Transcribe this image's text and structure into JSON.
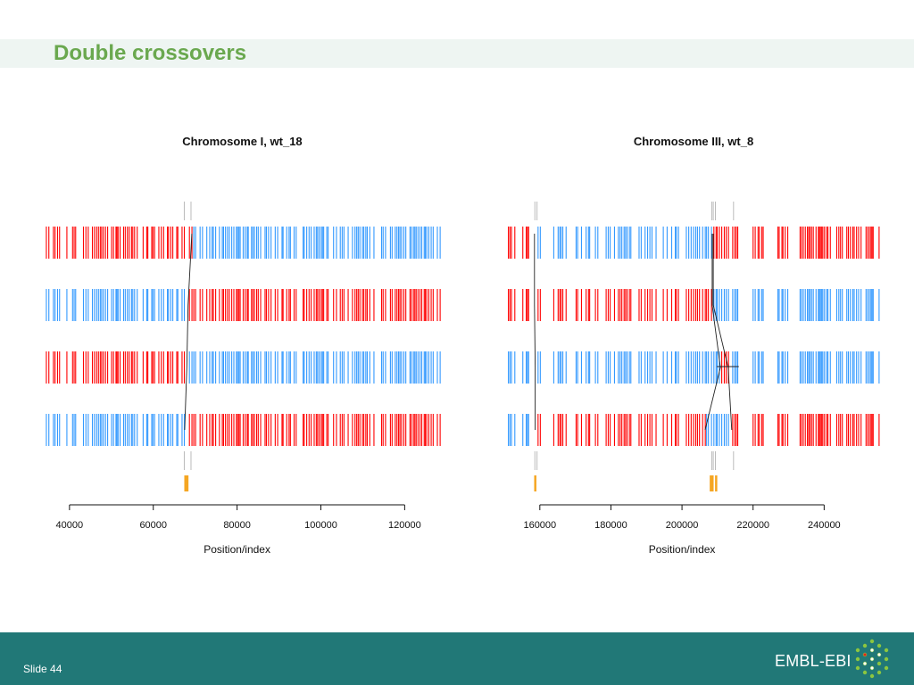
{
  "slide": {
    "title": "Double crossovers",
    "footer_label": "Slide 44",
    "logo_text": "EMBL-EBI"
  },
  "colors": {
    "red": "#ff0000",
    "blue": "#3399ff",
    "orange": "#f5a623",
    "line": "#222222",
    "title_green": "#6aa84f",
    "footer_teal": "#217877"
  },
  "chart_data": [
    {
      "type": "genotype-tracks",
      "title": "Chromosome I, wt_18",
      "xlabel": "Position/index",
      "xlim": [
        33000,
        131000
      ],
      "xticks": [
        40000,
        60000,
        80000,
        100000,
        120000
      ],
      "tick_labels": [
        "40000",
        "60000",
        "80000",
        "100000",
        "120000"
      ],
      "track_range": [
        34000,
        128500
      ],
      "tracks": [
        {
          "segments": [
            {
              "from": 34000,
              "to": 69200,
              "color": "red"
            },
            {
              "from": 69200,
              "to": 128500,
              "color": "blue"
            }
          ]
        },
        {
          "segments": [
            {
              "from": 34000,
              "to": 68300,
              "color": "blue"
            },
            {
              "from": 68300,
              "to": 128500,
              "color": "red"
            }
          ]
        },
        {
          "segments": [
            {
              "from": 34000,
              "to": 68000,
              "color": "red"
            },
            {
              "from": 68000,
              "to": 128500,
              "color": "blue"
            }
          ]
        },
        {
          "segments": [
            {
              "from": 34000,
              "to": 67500,
              "color": "blue"
            },
            {
              "from": 67500,
              "to": 128500,
              "color": "red"
            }
          ]
        }
      ],
      "gaps": [
        [
          35200,
          35700
        ],
        [
          39500,
          40200
        ],
        [
          41800,
          42400
        ],
        [
          44500,
          45000
        ],
        [
          56500,
          57400
        ],
        [
          74800,
          75400
        ],
        [
          79200,
          79700
        ],
        [
          85800,
          86500
        ],
        [
          89000,
          89300
        ],
        [
          94500,
          95200
        ],
        [
          100600,
          101200
        ],
        [
          105600,
          106200
        ],
        [
          111800,
          112400
        ],
        [
          116000,
          116400
        ],
        [
          120200,
          120700
        ]
      ],
      "connectors": [
        [
          69200,
          68300,
          68000,
          67500
        ]
      ],
      "top_marks": [
        67400,
        69000
      ],
      "highlights": [
        [
          67400,
          68400
        ]
      ]
    },
    {
      "type": "genotype-tracks",
      "title": "Chromosome III, wt_8",
      "xlabel": "Position/index",
      "xlim": [
        150000,
        258000
      ],
      "xticks": [
        160000,
        180000,
        200000,
        220000,
        240000
      ],
      "tick_labels": [
        "160000",
        "180000",
        "200000",
        "220000",
        "240000"
      ],
      "track_range": [
        150500,
        256000
      ],
      "tracks": [
        {
          "segments": [
            {
              "from": 150500,
              "to": 158500,
              "color": "red"
            },
            {
              "from": 158500,
              "to": 208500,
              "color": "blue"
            },
            {
              "from": 208500,
              "to": 256000,
              "color": "red"
            }
          ]
        },
        {
          "segments": [
            {
              "from": 150500,
              "to": 158500,
              "color": "red"
            },
            {
              "from": 158500,
              "to": 208500,
              "color": "red"
            },
            {
              "from": 208500,
              "to": 256000,
              "color": "blue"
            }
          ]
        },
        {
          "segments": [
            {
              "from": 150500,
              "to": 158700,
              "color": "blue"
            },
            {
              "from": 158700,
              "to": 210800,
              "color": "blue"
            },
            {
              "from": 210800,
              "to": 213000,
              "color": "red"
            },
            {
              "from": 213000,
              "to": 256000,
              "color": "blue"
            }
          ]
        },
        {
          "segments": [
            {
              "from": 150500,
              "to": 158700,
              "color": "blue"
            },
            {
              "from": 158700,
              "to": 206500,
              "color": "red"
            },
            {
              "from": 206500,
              "to": 214000,
              "color": "blue"
            },
            {
              "from": 214000,
              "to": 256000,
              "color": "red"
            }
          ]
        }
      ],
      "gaps": [
        [
          153000,
          155000
        ],
        [
          157000,
          158400
        ],
        [
          161200,
          163400
        ],
        [
          167600,
          168800
        ],
        [
          171800,
          172800
        ],
        [
          174000,
          175500
        ],
        [
          177500,
          178000
        ],
        [
          179800,
          180500
        ],
        [
          187000,
          187600
        ],
        [
          191500,
          192000
        ],
        [
          193500,
          194500
        ],
        [
          197000,
          197600
        ],
        [
          216000,
          219500
        ],
        [
          222800,
          226000
        ],
        [
          230500,
          232500
        ]
      ],
      "connectors": [
        [
          158500,
          158500,
          158700,
          158700
        ],
        [
          208500,
          208500,
          210800,
          206500
        ],
        [
          208800,
          208800,
          213000,
          214000
        ]
      ],
      "top_marks": [
        158600,
        159200,
        208400,
        208800,
        209400,
        214500
      ],
      "highlights": [
        [
          158400,
          158900
        ],
        [
          207800,
          208900
        ],
        [
          209300,
          209700
        ]
      ]
    }
  ]
}
